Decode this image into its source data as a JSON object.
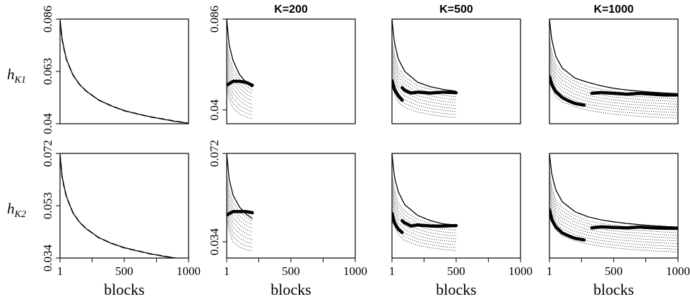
{
  "chart_data": [
    {
      "type": "line",
      "row": 0,
      "col": 0,
      "title": "",
      "xlabel": "",
      "ylabel": "hK1",
      "xlim": [
        1,
        1000
      ],
      "ylim": [
        0.04,
        0.086
      ],
      "x_ticks": [],
      "y_ticks": [
        "0.04",
        "0.063",
        "0.086"
      ],
      "series": [
        {
          "style": "solid",
          "x": [
            1,
            20,
            50,
            100,
            150,
            200,
            300,
            400,
            500,
            600,
            700,
            800,
            900,
            1000
          ],
          "y": [
            0.0855,
            0.076,
            0.0685,
            0.0615,
            0.0575,
            0.0545,
            0.0505,
            0.0478,
            0.0458,
            0.0443,
            0.0431,
            0.042,
            0.041,
            0.0402
          ]
        },
        {
          "style": "dashed",
          "x": [
            1,
            20,
            50,
            100,
            150,
            200,
            300,
            400,
            500,
            600,
            700,
            800,
            900,
            1000
          ],
          "y": [
            0.0855,
            0.0757,
            0.0683,
            0.0616,
            0.0574,
            0.0546,
            0.0504,
            0.0479,
            0.0457,
            0.0444,
            0.043,
            0.0421,
            0.0411,
            0.0402
          ]
        }
      ]
    },
    {
      "type": "line",
      "row": 0,
      "col": 1,
      "title": "K=200",
      "xlabel": "",
      "xlim": [
        1,
        1000
      ],
      "ylim": [
        0.033,
        0.086
      ],
      "x_ticks": [],
      "y_ticks": [
        "0.04",
        "0.086"
      ],
      "series": [
        {
          "style": "solid",
          "x": [
            1,
            20,
            50,
            100,
            150,
            200
          ],
          "y": [
            0.086,
            0.073,
            0.065,
            0.058,
            0.054,
            0.0515
          ]
        },
        {
          "style": "dotted-family",
          "x": [
            1,
            20,
            50,
            100,
            150,
            200
          ],
          "y_top": [
            0.075,
            0.067,
            0.061,
            0.0555,
            0.052,
            0.05
          ],
          "y_bottom": [
            0.052,
            0.045,
            0.041,
            0.038,
            0.0365,
            0.0355
          ]
        },
        {
          "style": "bold",
          "x": [
            1,
            50,
            100,
            150,
            200
          ],
          "y": [
            0.0525,
            0.0545,
            0.0545,
            0.054,
            0.0525
          ]
        }
      ]
    },
    {
      "type": "line",
      "row": 0,
      "col": 2,
      "title": "K=500",
      "xlabel": "",
      "xlim": [
        1,
        1000
      ],
      "ylim": [
        0.028,
        0.086
      ],
      "x_ticks": [],
      "y_ticks": [],
      "series": [
        {
          "style": "solid",
          "x": [
            1,
            20,
            50,
            100,
            200,
            300,
            400,
            500
          ],
          "y": [
            0.086,
            0.073,
            0.064,
            0.057,
            0.051,
            0.0485,
            0.047,
            0.046
          ]
        },
        {
          "style": "dotted-family",
          "x": [
            1,
            20,
            50,
            100,
            200,
            300,
            400,
            500
          ],
          "y_top": [
            0.075,
            0.066,
            0.059,
            0.054,
            0.049,
            0.047,
            0.0455,
            0.0445
          ],
          "y_bottom": [
            0.052,
            0.045,
            0.04,
            0.037,
            0.0345,
            0.033,
            0.032,
            0.0315
          ]
        },
        {
          "style": "bold",
          "x": [
            1,
            20,
            50,
            80
          ],
          "y": [
            0.052,
            0.047,
            0.0435,
            0.041
          ]
        },
        {
          "style": "bold",
          "x": [
            80,
            100,
            150,
            200,
            300,
            400,
            500
          ],
          "y": [
            0.048,
            0.0465,
            0.045,
            0.0455,
            0.045,
            0.0455,
            0.0452
          ]
        }
      ]
    },
    {
      "type": "line",
      "row": 0,
      "col": 3,
      "title": "K=1000",
      "xlabel": "",
      "xlim": [
        1,
        1000
      ],
      "ylim": [
        0.024,
        0.086
      ],
      "x_ticks": [],
      "y_ticks": [],
      "series": [
        {
          "style": "solid",
          "x": [
            1,
            20,
            50,
            100,
            200,
            300,
            400,
            500,
            600,
            700,
            800,
            900,
            1000
          ],
          "y": [
            0.086,
            0.073,
            0.064,
            0.057,
            0.051,
            0.0485,
            0.0465,
            0.045,
            0.044,
            0.0433,
            0.0427,
            0.0422,
            0.0418
          ]
        },
        {
          "style": "dotted-family",
          "x": [
            1,
            20,
            50,
            100,
            200,
            300,
            400,
            500,
            600,
            700,
            800,
            900,
            1000
          ],
          "y_top": [
            0.075,
            0.066,
            0.059,
            0.054,
            0.049,
            0.046,
            0.0445,
            0.0432,
            0.0424,
            0.0417,
            0.0412,
            0.0408,
            0.0405
          ],
          "y_bottom": [
            0.052,
            0.045,
            0.04,
            0.037,
            0.034,
            0.032,
            0.0307,
            0.0297,
            0.029,
            0.0284,
            0.028,
            0.0276,
            0.0273
          ]
        },
        {
          "style": "bold",
          "x": [
            1,
            20,
            50,
            100,
            150,
            200,
            270
          ],
          "y": [
            0.052,
            0.047,
            0.043,
            0.0395,
            0.0375,
            0.036,
            0.035
          ]
        },
        {
          "style": "bold",
          "x": [
            330,
            400,
            500,
            600,
            700,
            800,
            900,
            1000
          ],
          "y": [
            0.042,
            0.0425,
            0.042,
            0.0415,
            0.042,
            0.0415,
            0.041,
            0.041
          ]
        }
      ]
    },
    {
      "type": "line",
      "row": 1,
      "col": 0,
      "title": "",
      "xlabel": "blocks",
      "ylabel": "hK2",
      "xlim": [
        1,
        1000
      ],
      "ylim": [
        0.034,
        0.072
      ],
      "x_ticks": [
        "1",
        "500",
        "1000"
      ],
      "y_ticks": [
        "0.034",
        "0.053",
        "0.072"
      ],
      "series": [
        {
          "style": "solid",
          "x": [
            1,
            20,
            50,
            100,
            150,
            200,
            300,
            400,
            500,
            600,
            700,
            800,
            900,
            1000
          ],
          "y": [
            0.0715,
            0.0625,
            0.0565,
            0.0505,
            0.0472,
            0.0448,
            0.0415,
            0.0393,
            0.0378,
            0.0366,
            0.0356,
            0.0347,
            0.034,
            0.0334
          ]
        },
        {
          "style": "dashed",
          "x": [
            1,
            20,
            50,
            100,
            150,
            200,
            300,
            400,
            500,
            600,
            700,
            800,
            900,
            1000
          ],
          "y": [
            0.0715,
            0.0622,
            0.0563,
            0.0506,
            0.0471,
            0.0449,
            0.0414,
            0.0394,
            0.0377,
            0.0367,
            0.0355,
            0.0348,
            0.0339,
            0.0334
          ]
        }
      ]
    },
    {
      "type": "line",
      "row": 1,
      "col": 1,
      "title": "",
      "xlabel": "blocks",
      "xlim": [
        1,
        1000
      ],
      "ylim": [
        0.027,
        0.072
      ],
      "x_ticks": [
        "1",
        "500",
        "1000"
      ],
      "y_ticks": [
        "0.034",
        "0.072"
      ],
      "series": [
        {
          "style": "solid",
          "x": [
            1,
            20,
            50,
            100,
            150,
            200
          ],
          "y": [
            0.072,
            0.061,
            0.054,
            0.049,
            0.046,
            0.044
          ]
        },
        {
          "style": "dotted-family",
          "x": [
            1,
            20,
            50,
            100,
            150,
            200
          ],
          "y_top": [
            0.063,
            0.056,
            0.051,
            0.047,
            0.0445,
            0.043
          ],
          "y_bottom": [
            0.044,
            0.038,
            0.034,
            0.0318,
            0.0305,
            0.03
          ]
        },
        {
          "style": "bold",
          "x": [
            1,
            50,
            100,
            150,
            200
          ],
          "y": [
            0.0455,
            0.047,
            0.047,
            0.047,
            0.0465
          ]
        }
      ]
    },
    {
      "type": "line",
      "row": 1,
      "col": 2,
      "title": "",
      "xlabel": "blocks",
      "xlim": [
        1,
        1000
      ],
      "ylim": [
        0.023,
        0.072
      ],
      "x_ticks": [
        "1",
        "500",
        "1000"
      ],
      "y_ticks": [],
      "series": [
        {
          "style": "solid",
          "x": [
            1,
            20,
            50,
            100,
            200,
            300,
            400,
            500
          ],
          "y": [
            0.072,
            0.061,
            0.054,
            0.048,
            0.043,
            0.0405,
            0.039,
            0.0385
          ]
        },
        {
          "style": "dotted-family",
          "x": [
            1,
            20,
            50,
            100,
            200,
            300,
            400,
            500
          ],
          "y_top": [
            0.063,
            0.055,
            0.049,
            0.045,
            0.041,
            0.039,
            0.038,
            0.0375
          ],
          "y_bottom": [
            0.044,
            0.038,
            0.034,
            0.0312,
            0.029,
            0.0278,
            0.027,
            0.0265
          ]
        },
        {
          "style": "bold",
          "x": [
            1,
            20,
            50,
            80
          ],
          "y": [
            0.044,
            0.0395,
            0.0365,
            0.035
          ]
        },
        {
          "style": "bold",
          "x": [
            80,
            100,
            150,
            200,
            300,
            400,
            500
          ],
          "y": [
            0.0405,
            0.0395,
            0.038,
            0.0385,
            0.038,
            0.038,
            0.0382
          ]
        }
      ]
    },
    {
      "type": "line",
      "row": 1,
      "col": 3,
      "title": "",
      "xlabel": "blocks",
      "xlim": [
        1,
        1000
      ],
      "ylim": [
        0.02,
        0.072
      ],
      "x_ticks": [
        "1",
        "500",
        "1000"
      ],
      "y_ticks": [],
      "series": [
        {
          "style": "solid",
          "x": [
            1,
            20,
            50,
            100,
            200,
            300,
            400,
            500,
            600,
            700,
            800,
            900,
            1000
          ],
          "y": [
            0.072,
            0.061,
            0.054,
            0.048,
            0.043,
            0.0405,
            0.039,
            0.038,
            0.0372,
            0.0366,
            0.0361,
            0.0357,
            0.0354
          ]
        },
        {
          "style": "dotted-family",
          "x": [
            1,
            20,
            50,
            100,
            200,
            300,
            400,
            500,
            600,
            700,
            800,
            900,
            1000
          ],
          "y_top": [
            0.063,
            0.055,
            0.049,
            0.045,
            0.041,
            0.0385,
            0.0372,
            0.0363,
            0.0356,
            0.0351,
            0.0347,
            0.0343,
            0.034
          ],
          "y_bottom": [
            0.044,
            0.038,
            0.034,
            0.031,
            0.0285,
            0.027,
            0.0259,
            0.0251,
            0.0245,
            0.024,
            0.0236,
            0.0233,
            0.023
          ]
        },
        {
          "style": "bold",
          "x": [
            1,
            20,
            50,
            100,
            150,
            200,
            270
          ],
          "y": [
            0.044,
            0.039,
            0.0355,
            0.0325,
            0.031,
            0.0298,
            0.029
          ]
        },
        {
          "style": "bold",
          "x": [
            330,
            400,
            500,
            600,
            700,
            800,
            900,
            1000
          ],
          "y": [
            0.035,
            0.0355,
            0.0352,
            0.035,
            0.0354,
            0.035,
            0.0348,
            0.0348
          ]
        }
      ]
    }
  ]
}
